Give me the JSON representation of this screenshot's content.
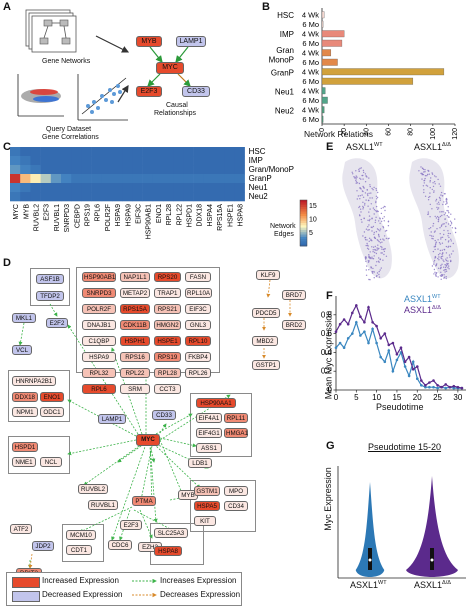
{
  "panels": {
    "A": {
      "letter": "A",
      "gene_networks": "Gene Networks",
      "query_line1": "Query Dataset",
      "query_line2": "Gene Correlations",
      "causal_line1": "Causal",
      "causal_line2": "Relationships",
      "nodes": [
        "MYB",
        "LAMP1",
        "MYC",
        "E2F3",
        "CD33"
      ]
    },
    "B": {
      "letter": "B",
      "chart_data": {
        "type": "bar",
        "orientation": "horizontal",
        "groups": [
          "HSC",
          "IMP",
          "Gran/MonoP",
          "GranP",
          "Neu1",
          "Neu2"
        ],
        "group_labels_shown": [
          "HSC",
          "IMP",
          "Gran",
          "MonoP",
          "GranP",
          "Neu1",
          "Neu2"
        ],
        "series_labels": [
          "4 Wk",
          "6 Mo"
        ],
        "values": [
          [
            2,
            1
          ],
          [
            20,
            18
          ],
          [
            8,
            14
          ],
          [
            110,
            82
          ],
          [
            3,
            5
          ],
          [
            2,
            1
          ]
        ],
        "colors": [
          "#f4d7d0",
          "#e8897a",
          "#e2884a",
          "#d1a13c",
          "#53a58a",
          "#4f9e7f"
        ],
        "xlabel": "Network Relations",
        "xticks": [
          "0",
          "20",
          "40",
          "60",
          "80",
          "100",
          "120"
        ],
        "xlim": [
          0,
          120
        ]
      }
    },
    "C": {
      "letter": "C",
      "chart_data": {
        "type": "heatmap",
        "rows": [
          "HSC",
          "IMP",
          "Gran/MonoP",
          "GranP",
          "Neu1",
          "Neu2"
        ],
        "columns": [
          "MYC",
          "MYB",
          "RUVBL2",
          "E2F3",
          "RUVBL1",
          "SNRPD3",
          "CEBPD",
          "RPS19",
          "RPL6",
          "POLR2F",
          "HSPA9",
          "HSPA9_2",
          "EIF3C",
          "HSP90AB1",
          "ENO1",
          "RPL28",
          "RPL22",
          "HSPD1",
          "DDX18",
          "HSPA4",
          "RPS15A",
          "HSPE1",
          "HSPA8"
        ],
        "column_labels": [
          "MYC",
          "MYB",
          "RUVBL2",
          "E2F3",
          "RUVBL1",
          "SNRPD3",
          "CEBPD",
          "RPS19",
          "RPL6",
          "POLR2F",
          "HSPA9",
          "HSPA9",
          "EIF3C",
          "HSP90AB1",
          "ENO1",
          "RPL28",
          "RPL22",
          "HSPD1",
          "DDX18",
          "HSPA4",
          "RPS15A",
          "HSPE1",
          "HSPA8"
        ],
        "values": [
          [
            2,
            1,
            1,
            1,
            1,
            1,
            1,
            1,
            1,
            1,
            1,
            1,
            1,
            1,
            1,
            1,
            1,
            1,
            1,
            1,
            1,
            1,
            1
          ],
          [
            3,
            2,
            1,
            1,
            1,
            1,
            1,
            1,
            1,
            1,
            1,
            1,
            1,
            1,
            1,
            1,
            1,
            1,
            1,
            1,
            1,
            1,
            1
          ],
          [
            4,
            3,
            2,
            1,
            1,
            1,
            1,
            1,
            1,
            1,
            1,
            1,
            1,
            1,
            1,
            1,
            1,
            1,
            1,
            1,
            1,
            1,
            1
          ],
          [
            16,
            10,
            8,
            6,
            4,
            3,
            2,
            2,
            2,
            2,
            2,
            2,
            2,
            2,
            2,
            2,
            2,
            2,
            2,
            2,
            2,
            2,
            2
          ],
          [
            3,
            2,
            1,
            1,
            1,
            1,
            1,
            1,
            1,
            1,
            1,
            1,
            1,
            1,
            1,
            1,
            1,
            1,
            1,
            1,
            1,
            1,
            1
          ],
          [
            2,
            1,
            1,
            1,
            1,
            1,
            1,
            1,
            1,
            1,
            1,
            1,
            1,
            1,
            1,
            1,
            1,
            1,
            1,
            1,
            1,
            1,
            1
          ]
        ],
        "colorbar_label_line1": "Network",
        "colorbar_label_line2": "Edges",
        "colorbar_ticks": [
          "15",
          "10",
          "5"
        ],
        "range": [
          0,
          17
        ]
      }
    },
    "D": {
      "letter": "D",
      "legend": {
        "increased": "Increased Expression",
        "decreased": "Decreased Expression",
        "increases": "Increases Expression",
        "decreases": "Decreases Expression"
      },
      "nodes": {
        "ASF1B": "ASF1B",
        "TFDP2": "TFDP2",
        "MKL1": "MKL1",
        "E2F2": "E2F2",
        "VCL": "VCL",
        "HSP90AB1": "HSP90AB1",
        "NAP1L1": "NAP1L1",
        "RPS20": "RPS20",
        "FASN": "FASN",
        "SNRPD3": "SNRPD3",
        "METAP2": "METAP2",
        "TRAP1": "TRAP1",
        "RPL10A": "RPL10A",
        "POLR2F": "POLR2F",
        "RPS15A": "RPS15A",
        "RPS21": "RPS21",
        "EIF3C": "EIF3C",
        "DNAJB1": "DNAJB1",
        "CDK11B": "CDK11B",
        "HMGN2": "HMGN2",
        "GNL3": "GNL3",
        "C1QBP": "C1QBP",
        "HSPH1": "HSPH1",
        "HSPE1": "HSPE1",
        "RPL10": "RPL10",
        "HSPA9": "HSPA9",
        "RPS16": "RPS16",
        "RPS19": "RPS19",
        "FKBP4": "FKBP4",
        "RPL32": "RPL32",
        "RPL22": "RPL22",
        "RPL28": "RPL28",
        "RPL26": "RPL26",
        "RPL6": "RPL6",
        "SRM": "SRM",
        "CCT3": "CCT3",
        "KLF9": "KLF9",
        "PDCD5": "PDCD5",
        "BRD7": "BRD7",
        "MBD2": "MBD2",
        "BRD2": "BRD2",
        "GSTP1": "GSTP1",
        "HNRNPA2B1": "HNRNPA2B1",
        "DDX18": "DDX18",
        "ENO1": "ENO1",
        "NPM1": "NPM1",
        "ODC1": "ODC1",
        "LAMP1": "LAMP1",
        "CD33": "CD33",
        "HSP90AA1": "HSP90AA1",
        "EIF4A1": "EIF4A1",
        "RPL11": "RPL11",
        "EIF4G1": "EIF4G1",
        "HMGA1": "HMGA1",
        "ASS1": "ASS1",
        "HSPD1": "HSPD1",
        "NME1": "NME1",
        "NCL": "NCL",
        "MYC": "MYC",
        "LDB1": "LDB1",
        "RUVBL2": "RUVBL2",
        "RUVBL1": "RUVBL1",
        "PTMA": "PTMA",
        "MYB": "MYB",
        "GSTM1": "GSTM1",
        "MPO": "MPO",
        "HSPA5": "HSPA5",
        "CD34": "CD34",
        "KIT": "KIT",
        "ATF2": "ATF2",
        "JDP2": "JDP2",
        "DDIT3": "DDIT3",
        "E2F3": "E2F3",
        "MCM10": "MCM10",
        "CDT1": "CDT1",
        "CDC6": "CDC6",
        "EZH2": "EZH2",
        "SLC25A3": "SLC25A3",
        "HSPA8": "HSPA8"
      }
    },
    "E": {
      "letter": "E",
      "label_wt": "ASXL1",
      "label_wt_sup": "WT",
      "label_mut": "ASXL1",
      "label_mut_sup": "Δ/Δ",
      "dot_color": "#8b78c4"
    },
    "F": {
      "letter": "F",
      "chart_data": {
        "type": "line",
        "xlabel": "Pseudotime",
        "ylabel": "Mean Myc Expression",
        "xlim": [
          0,
          32
        ],
        "ylim": [
          0,
          1.0
        ],
        "xticks": [
          "0",
          "5",
          "10",
          "15",
          "20",
          "25",
          "30"
        ],
        "yticks": [
          "0",
          "0.2",
          "0.4",
          "0.6",
          "0.8"
        ],
        "series": [
          {
            "name": "ASXL1",
            "name_sup": "WT",
            "color": "#3a87c0",
            "x": [
              0,
              1,
              2,
              3,
              4,
              5,
              6,
              7,
              8,
              9,
              10,
              11,
              12,
              13,
              14,
              15,
              16,
              17,
              18,
              19,
              20,
              21,
              22,
              23,
              24,
              25,
              26,
              27,
              28,
              29,
              30,
              31
            ],
            "y": [
              0.45,
              0.5,
              0.45,
              0.55,
              0.6,
              0.72,
              0.58,
              0.62,
              0.5,
              0.65,
              0.5,
              0.35,
              0.3,
              0.42,
              0.2,
              0.32,
              0.4,
              0.25,
              0.15,
              0.3,
              0.12,
              0.05,
              0.03,
              0.03,
              0.03,
              0.02,
              0.03,
              0.02,
              0.03,
              0.02,
              0.02,
              0.02
            ]
          },
          {
            "name": "ASXL1",
            "name_sup": "Δ/Δ",
            "color": "#5b2a8c",
            "x": [
              0,
              1,
              2,
              3,
              4,
              5,
              6,
              7,
              8,
              9,
              10,
              11,
              12,
              13,
              14,
              15,
              16,
              17,
              18,
              19,
              20,
              21,
              22,
              23,
              24,
              25,
              26,
              27,
              28,
              29,
              30,
              31
            ],
            "y": [
              0.62,
              0.7,
              0.75,
              0.7,
              0.82,
              0.9,
              0.78,
              0.72,
              0.88,
              0.72,
              0.68,
              0.55,
              0.6,
              0.48,
              0.5,
              0.38,
              0.45,
              0.3,
              0.35,
              0.22,
              0.25,
              0.1,
              0.05,
              0.08,
              0.1,
              0.05,
              0.03,
              0.06,
              0.03,
              0.04,
              0.03,
              0.02
            ]
          }
        ]
      }
    },
    "G": {
      "letter": "G",
      "title": "Pseudotime 15-20",
      "ylabel": "Myc Expression",
      "chart_data": {
        "type": "violin",
        "categories": [
          "ASXL1WT",
          "ASXL1Δ/Δ"
        ],
        "category_label": "ASXL1",
        "category_sups": [
          "WT",
          "Δ/Δ"
        ],
        "colors": [
          "#2c78b5",
          "#5b2a8c"
        ],
        "widths": [
          0.55,
          1.0
        ]
      }
    }
  }
}
